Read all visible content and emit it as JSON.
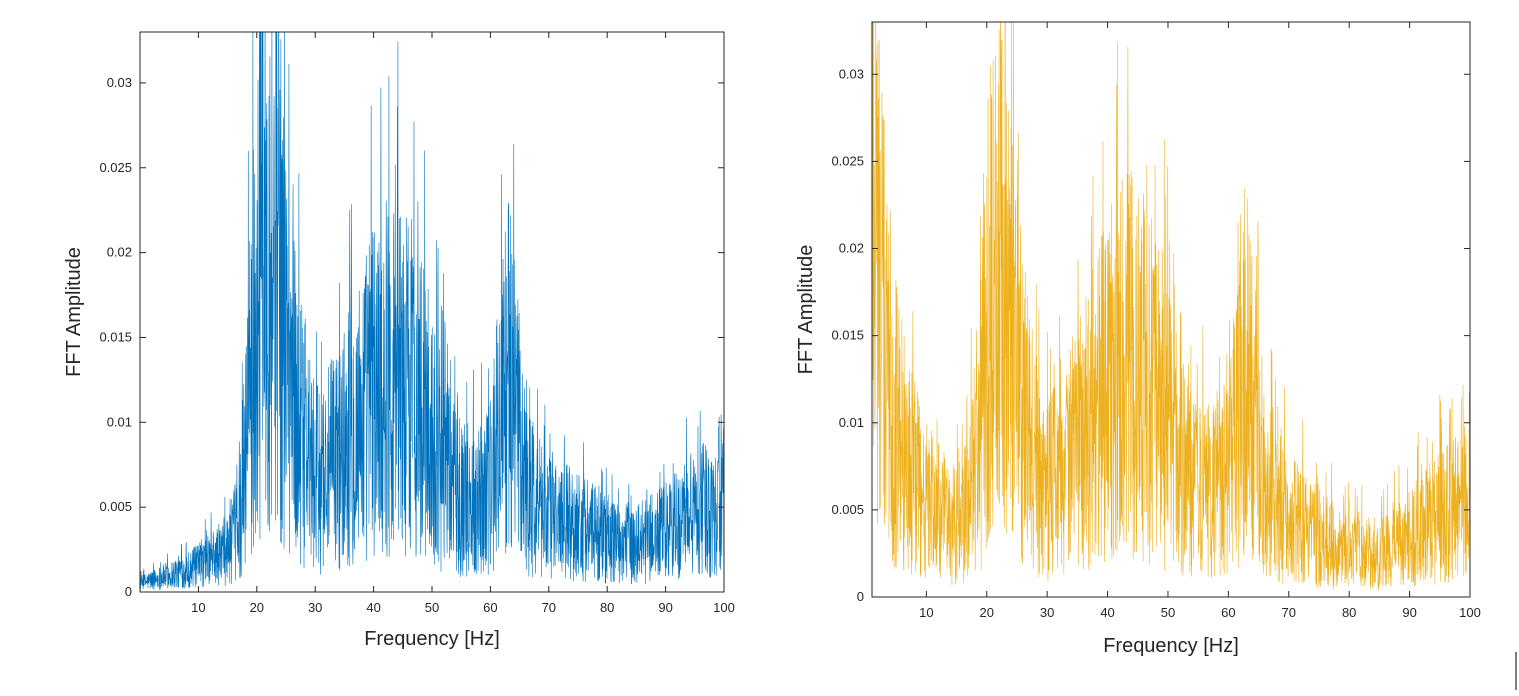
{
  "chart_data": [
    {
      "type": "line",
      "xlabel": "Frequency [Hz]",
      "ylabel": "FFT Amplitude",
      "xlim": [
        0,
        100
      ],
      "ylim": [
        0,
        0.033
      ],
      "xticks": [
        10,
        20,
        30,
        40,
        50,
        60,
        70,
        80,
        90,
        100
      ],
      "xtick_labels": [
        "10",
        "20",
        "30",
        "40",
        "50",
        "60",
        "70",
        "80",
        "90",
        "100"
      ],
      "yticks": [
        0,
        0.005,
        0.01,
        0.015,
        0.02,
        0.025,
        0.03
      ],
      "ytick_labels": [
        "0",
        "0.005",
        "0.01",
        "0.015",
        "0.02",
        "0.025",
        "0.03"
      ],
      "color": "#0072BD",
      "grid": false,
      "series": [
        {
          "x": [
            0,
            5,
            10,
            15,
            17,
            19,
            20,
            21,
            22,
            23,
            24,
            25,
            27,
            30,
            33,
            36,
            40,
            43,
            45,
            48,
            50,
            53,
            55,
            58,
            60,
            62,
            63,
            64,
            66,
            68,
            70,
            75,
            80,
            85,
            90,
            95,
            100
          ],
          "y": [
            0.0005,
            0.001,
            0.0015,
            0.0025,
            0.004,
            0.012,
            0.016,
            0.02,
            0.021,
            0.02,
            0.018,
            0.015,
            0.01,
            0.0065,
            0.0075,
            0.009,
            0.012,
            0.013,
            0.0125,
            0.011,
            0.009,
            0.0065,
            0.0055,
            0.0055,
            0.0065,
            0.011,
            0.013,
            0.011,
            0.0065,
            0.005,
            0.0045,
            0.004,
            0.003,
            0.0028,
            0.0035,
            0.0045,
            0.0055
          ]
        }
      ]
    },
    {
      "type": "line",
      "xlabel": "Frequency [Hz]",
      "ylabel": "FFT Amplitude",
      "xlim": [
        1,
        100
      ],
      "ylim": [
        0,
        0.033
      ],
      "xticks": [
        10,
        20,
        30,
        40,
        50,
        60,
        70,
        80,
        90,
        100
      ],
      "xtick_labels": [
        "10",
        "20",
        "30",
        "40",
        "50",
        "60",
        "70",
        "80",
        "90",
        "100"
      ],
      "yticks": [
        0,
        0.005,
        0.01,
        0.015,
        0.02,
        0.025,
        0.03
      ],
      "ytick_labels": [
        "0",
        "0.005",
        "0.01",
        "0.015",
        "0.02",
        "0.025",
        "0.03"
      ],
      "color": "#EDB120",
      "grid": false,
      "series": [
        {
          "x": [
            1,
            2,
            3,
            4,
            5,
            7,
            10,
            13,
            15,
            17,
            19,
            20,
            21,
            22,
            23,
            24,
            25,
            27,
            30,
            33,
            36,
            40,
            43,
            45,
            48,
            50,
            53,
            55,
            58,
            60,
            62,
            63,
            64,
            66,
            68,
            70,
            75,
            80,
            85,
            90,
            95,
            100
          ],
          "y": [
            0.029,
            0.02,
            0.015,
            0.012,
            0.01,
            0.0075,
            0.0055,
            0.0045,
            0.004,
            0.005,
            0.01,
            0.015,
            0.018,
            0.019,
            0.018,
            0.016,
            0.013,
            0.009,
            0.006,
            0.0075,
            0.009,
            0.012,
            0.0135,
            0.013,
            0.0115,
            0.0095,
            0.007,
            0.006,
            0.006,
            0.007,
            0.011,
            0.0125,
            0.0105,
            0.0065,
            0.005,
            0.0045,
            0.0035,
            0.0025,
            0.0025,
            0.0035,
            0.0045,
            0.0055
          ]
        }
      ]
    }
  ]
}
